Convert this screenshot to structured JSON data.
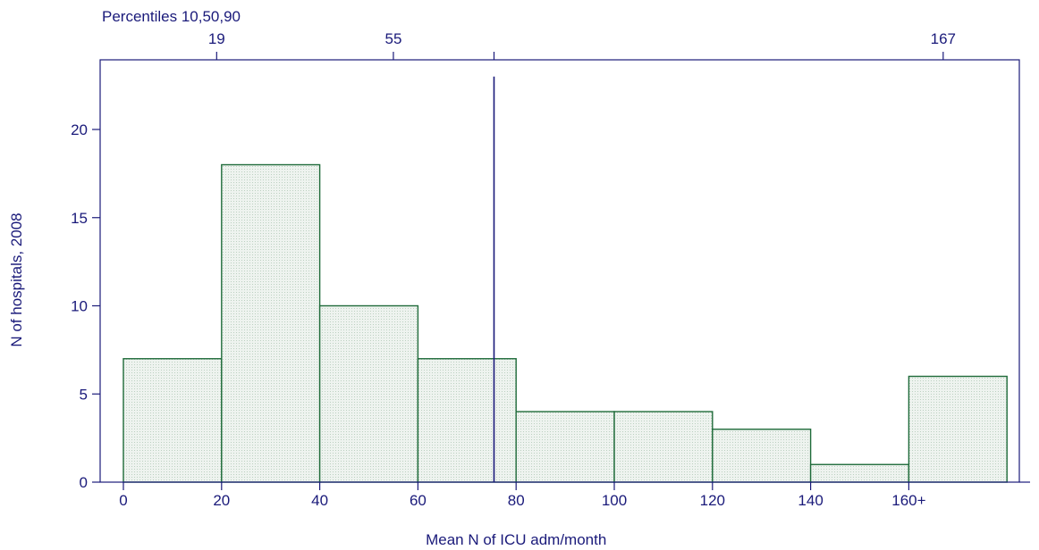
{
  "chart_data": {
    "type": "bar",
    "xlabel": "Mean N of ICU adm/month",
    "ylabel": "N of hospitals, 2008",
    "bins": [
      {
        "x0": 0,
        "x1": 20,
        "value": 7
      },
      {
        "x0": 20,
        "x1": 40,
        "value": 18
      },
      {
        "x0": 40,
        "x1": 60,
        "value": 10
      },
      {
        "x0": 60,
        "x1": 80,
        "value": 7
      },
      {
        "x0": 80,
        "x1": 100,
        "value": 4
      },
      {
        "x0": 100,
        "x1": 120,
        "value": 4
      },
      {
        "x0": 120,
        "x1": 140,
        "value": 3
      },
      {
        "x0": 140,
        "x1": 160,
        "value": 1
      },
      {
        "x0": 160,
        "x1": 180,
        "value": 6
      }
    ],
    "x_ticks": [
      {
        "value": 0,
        "label": "0"
      },
      {
        "value": 20,
        "label": "20"
      },
      {
        "value": 40,
        "label": "40"
      },
      {
        "value": 60,
        "label": "60"
      },
      {
        "value": 80,
        "label": "80"
      },
      {
        "value": 100,
        "label": "100"
      },
      {
        "value": 120,
        "label": "120"
      },
      {
        "value": 140,
        "label": "140"
      },
      {
        "value": 160,
        "label": "160+"
      }
    ],
    "y_ticks": [
      0,
      5,
      10,
      15,
      20
    ],
    "xlim": [
      -5,
      186
    ],
    "ylim": [
      0,
      23.5
    ],
    "top_axis": {
      "title": "Percentiles 10,50,90",
      "ticks": [
        {
          "value": 19,
          "label": "19"
        },
        {
          "value": 55,
          "label": "55"
        },
        {
          "value": 75.5,
          "label": ""
        },
        {
          "value": 167,
          "label": "167"
        }
      ]
    },
    "reference_line": {
      "x": 75.5,
      "y_top": 23
    },
    "colors": {
      "bar_fill": "#e4ede6",
      "bar_edge": "#1f6b3a",
      "axis": "#1a1a7a"
    },
    "grid": false
  }
}
